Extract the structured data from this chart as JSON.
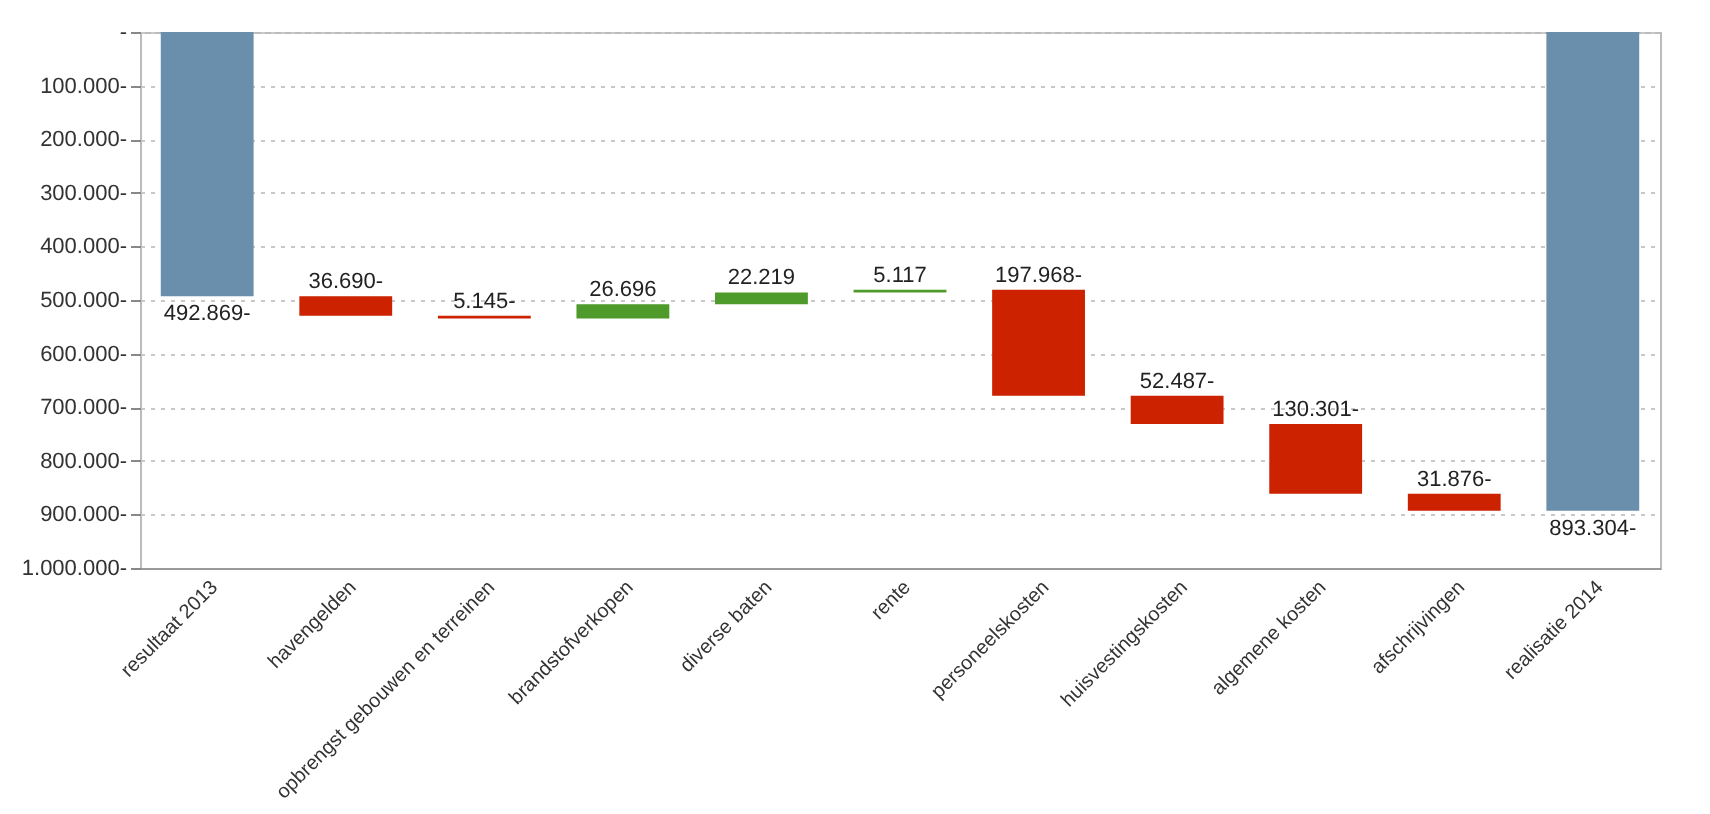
{
  "chart_data": {
    "type": "bar",
    "categories": [
      "resultaat 2013",
      "havengelden",
      "opbrengst gebouwen en terreinen",
      "brandstofverkopen",
      "diverse baten",
      "rente",
      "personeelskosten",
      "huisvestingskosten",
      "algemene kosten",
      "afschrijvingen",
      "realisatie 2014"
    ],
    "values": [
      -492869,
      -36690,
      -5145,
      26696,
      22219,
      5117,
      -197968,
      -52487,
      -130301,
      -31876,
      -893304
    ],
    "base": [
      0,
      -492869,
      -529559,
      -534704,
      -508008,
      -485789,
      -480672,
      -678640,
      -731127,
      -861428,
      0
    ],
    "colors": [
      "#6a8fad",
      "#cc2200",
      "#cc2200",
      "#4e9a2a",
      "#4e9a2a",
      "#4e9a2a",
      "#cc2200",
      "#cc2200",
      "#cc2200",
      "#cc2200",
      "#6a8fad"
    ],
    "value_labels": [
      "492.869-",
      "36.690-",
      "5.145-",
      "26.696",
      "22.219",
      "5.117",
      "197.968-",
      "52.487-",
      "130.301-",
      "31.876-",
      "893.304-"
    ],
    "ylim": [
      -1000000,
      0
    ],
    "yticks": [
      {
        "value": 0,
        "label": "-"
      },
      {
        "value": -100000,
        "label": "100.000-"
      },
      {
        "value": -200000,
        "label": "200.000-"
      },
      {
        "value": -300000,
        "label": "300.000-"
      },
      {
        "value": -400000,
        "label": "400.000-"
      },
      {
        "value": -500000,
        "label": "500.000-"
      },
      {
        "value": -600000,
        "label": "600.000-"
      },
      {
        "value": -700000,
        "label": "700.000-"
      },
      {
        "value": -800000,
        "label": "800.000-"
      },
      {
        "value": -900000,
        "label": "900.000-"
      },
      {
        "value": -1000000,
        "label": "1.000.000-"
      }
    ],
    "grid": "y"
  }
}
